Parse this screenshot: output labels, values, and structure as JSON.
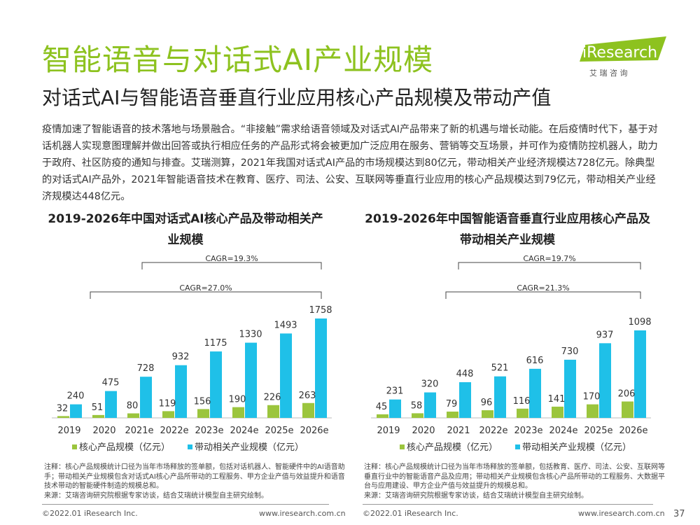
{
  "header": {
    "title": "智能语音与对话式AI产业规模",
    "subtitle": "对话式AI与智能语音垂直行业应用核心产品规模及带动产值",
    "logo_text": "iResearch",
    "logo_sub": "艾 瑞 咨 询"
  },
  "body_text": "疫情加速了智能语音的技术落地与场景融合。“非接触”需求给语音领域及对话式AI产品带来了新的机遇与增长动能。在后疫情时代下，基于对话机器人实现意图理解并做出回答或执行相应任务的产品形式将会被更加广泛应用在服务、营销等交互场景，并可作为疫情防控机器人，助力于政府、社区防疫的通知与排查。艾瑞测算，2021年我国对话式AI产品的市场规模达到80亿元，带动相关产业经济规模达728亿元。除典型的对话式AI产品外，2021年智能语音技术在教育、医疗、司法、公安、互联网等垂直行业应用的核心产品规模达到79亿元，带动相关产业经济规模达448亿元。",
  "colors": {
    "accent": "#8dc21f",
    "core": "#9bc53d",
    "related": "#1fc0e8"
  },
  "chart_data": [
    {
      "type": "bar",
      "title": "2019-2026年中国对话式AI核心产品及带动相关产业规模",
      "categories": [
        "2019",
        "2020",
        "2021e",
        "2022e",
        "2023e",
        "2024e",
        "2025e",
        "2026e"
      ],
      "series": [
        {
          "name": "核心产品规模（亿元）",
          "values": [
            32,
            51,
            80,
            119,
            156,
            190,
            226,
            263
          ]
        },
        {
          "name": "带动相关产业规模（亿元）",
          "values": [
            240,
            475,
            728,
            932,
            1175,
            1330,
            1493,
            1758
          ]
        }
      ],
      "annotations": [
        "CAGR=19.3%",
        "CAGR=27.0%"
      ],
      "note": "注释：核心产品规模统计口径为当年市场释放的签单额，包括对话机器人、智能硬件中的AI语音助手；带动相关产业规模包含对话式AI核心产品所带动的工程服务、甲方企业产值与效益提升和语音技术带动的智能硬件制造的规模总和。",
      "source": "来源：艾瑞咨询研究院根据专家访谈，结合艾瑞统计模型自主研究绘制。"
    },
    {
      "type": "bar",
      "title": "2019-2026年中国智能语音垂直行业应用核心产品及带动相关产业规模",
      "categories": [
        "2019",
        "2020",
        "2021",
        "2022e",
        "2023e",
        "2024e",
        "2025e",
        "2026e"
      ],
      "series": [
        {
          "name": "核心产品规模（亿元）",
          "values": [
            45,
            58,
            79,
            96,
            116,
            141,
            170,
            206
          ]
        },
        {
          "name": "带动相关产业规模（亿元）",
          "values": [
            231,
            320,
            448,
            521,
            616,
            730,
            937,
            1098
          ]
        }
      ],
      "annotations": [
        "CAGR=19.7%",
        "CAGR=21.3%"
      ],
      "note": "注释：核心产品规模统计口径为当年市场释放的签单额，包括教育、医疗、司法、公安、互联网等垂直行业中的智能语音产品及应用；带动相关产业规模包含核心产品所带动的工程服务、大数据平台与应用建设、甲方企业产值与效益提升的规模总和。",
      "source": "来源：艾瑞咨询研究院根据专家访谈，结合艾瑞统计模型自主研究绘制。"
    }
  ],
  "footer": {
    "copyright": "©2022.01 iResearch Inc.",
    "url": "www.iresearch.com.cn",
    "page": "37"
  }
}
